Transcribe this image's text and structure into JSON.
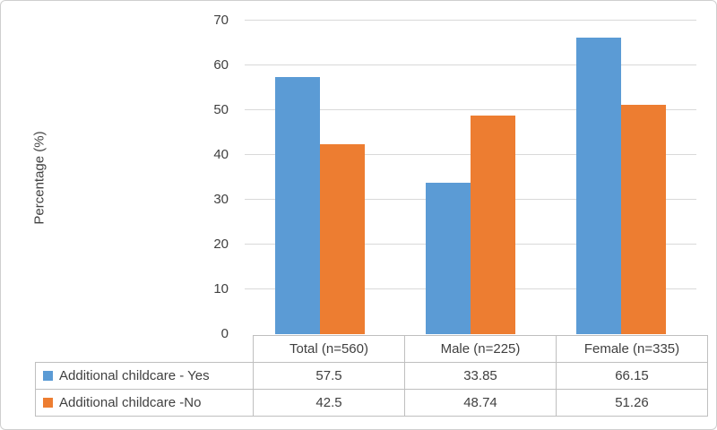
{
  "figure": {
    "background": "#FFFFFF",
    "border_color": "#CFCFCF"
  },
  "chart_data": {
    "type": "bar",
    "title": "",
    "ylabel": "Percentage (%)",
    "categories": [
      "Total (n=560)",
      "Male (n=225)",
      "Female (n=335)"
    ],
    "series": [
      {
        "name": "Additional childcare - Yes",
        "color": "#5B9BD5",
        "values": [
          57.5,
          33.85,
          66.15
        ]
      },
      {
        "name": "Additional childcare -No",
        "color": "#ED7D31",
        "values": [
          42.5,
          48.74,
          51.26
        ]
      }
    ],
    "ylim": [
      0,
      70
    ],
    "yticks": [
      0,
      10,
      20,
      30,
      40,
      50,
      60,
      70
    ],
    "grid": "horizontal",
    "gridline_color": "#D9D9D9",
    "table_border_color": "#BFBFBF",
    "text_color": "#404040",
    "legend_position": "table-left"
  }
}
